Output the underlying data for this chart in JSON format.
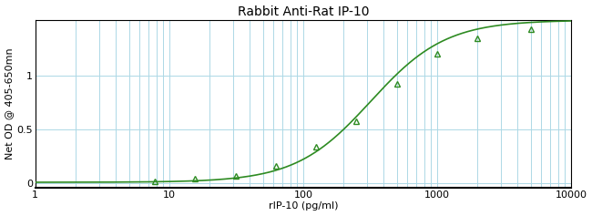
{
  "title": "Rabbit Anti-Rat IP-10",
  "xlabel": "rIP-10 (pg/ml)",
  "ylabel": "Net OD @ 405-650mn",
  "xlim": [
    1,
    10000
  ],
  "ylim": [
    -0.04,
    1.52
  ],
  "data_x": [
    7.8,
    15.6,
    31.25,
    62.5,
    125,
    250,
    500,
    1000,
    2000,
    5000
  ],
  "data_y": [
    0.02,
    0.04,
    0.07,
    0.16,
    0.34,
    0.58,
    0.93,
    1.21,
    1.35,
    1.44
  ],
  "curve_color": "#2E8B22",
  "marker_color": "#2E8B22",
  "grid_color": "#ADD8E6",
  "bg_color": "#ffffff",
  "yticks": [
    0,
    0.5,
    1
  ],
  "xticks": [
    1,
    10,
    100,
    1000,
    10000
  ],
  "xtick_labels": [
    "1",
    "10",
    "100",
    "1000",
    "10000"
  ],
  "4pl_a": 0.01,
  "4pl_d": 1.52,
  "4pl_c": 320,
  "4pl_b": 1.55,
  "title_fontsize": 10,
  "axis_fontsize": 8,
  "tick_fontsize": 8
}
